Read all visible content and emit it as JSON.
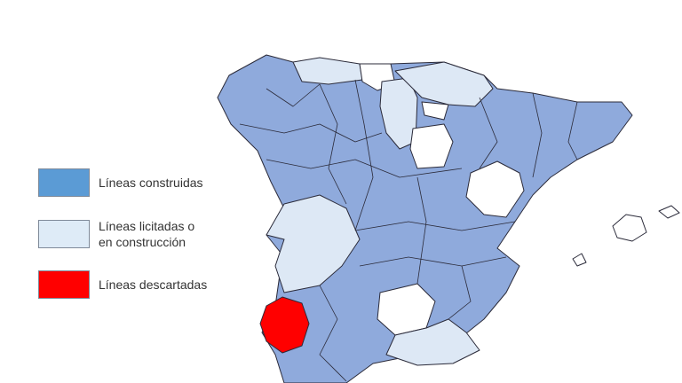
{
  "legend": [
    {
      "label_line1": "Líneas construidas",
      "label_line2": "",
      "color": "#5b9bd5"
    },
    {
      "label_line1": "Líneas licitadas o",
      "label_line2": "en construcción",
      "color": "#deebf7"
    },
    {
      "label_line1": "Líneas descartadas",
      "label_line2": "",
      "color": "#ff0000"
    }
  ],
  "colors": {
    "built_regions": "#8faadc",
    "tendered_regions": "#dde8f5",
    "no_line": "#ffffff",
    "discarded": "#ff0000",
    "border": "#2b2b3a"
  }
}
